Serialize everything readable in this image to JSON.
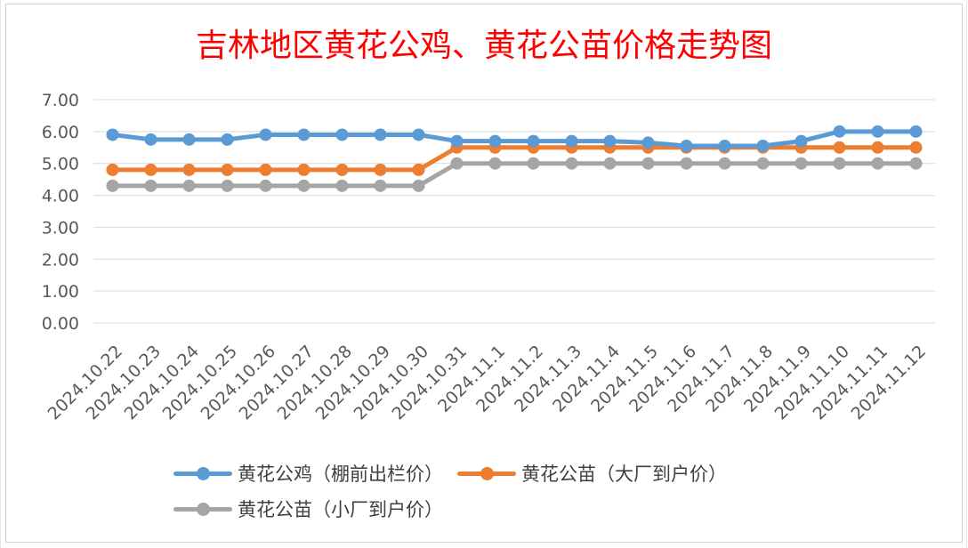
{
  "chart_data": {
    "type": "line",
    "title": "吉林地区黄花公鸡、黄花公苗价格走势图",
    "categories": [
      "2024.10.22",
      "2024.10.23",
      "2024.10.24",
      "2024.10.25",
      "2024.10.26",
      "2024.10.27",
      "2024.10.28",
      "2024.10.29",
      "2024.10.30",
      "2024.10.31",
      "2024.11.1",
      "2024.11.2",
      "2024.11.3",
      "2024.11.4",
      "2024.11.5",
      "2024.11.6",
      "2024.11.7",
      "2024.11.8",
      "2024.11.9",
      "2024.11.10",
      "2024.11.11",
      "2024.11.12"
    ],
    "series": [
      {
        "name": "黄花公鸡（棚前出栏价）",
        "color": "#5b9bd5",
        "values": [
          5.9,
          5.75,
          5.75,
          5.75,
          5.9,
          5.9,
          5.9,
          5.9,
          5.9,
          5.7,
          5.7,
          5.7,
          5.7,
          5.7,
          5.65,
          5.55,
          5.55,
          5.55,
          5.7,
          6.0,
          6.0,
          6.0
        ]
      },
      {
        "name": "黄花公苗（大厂到户价）",
        "color": "#ed7d31",
        "values": [
          4.8,
          4.8,
          4.8,
          4.8,
          4.8,
          4.8,
          4.8,
          4.8,
          4.8,
          5.5,
          5.5,
          5.5,
          5.5,
          5.5,
          5.5,
          5.5,
          5.5,
          5.5,
          5.5,
          5.5,
          5.5,
          5.5
        ]
      },
      {
        "name": "黄花公苗（小厂到户价）",
        "color": "#a5a5a5",
        "values": [
          4.3,
          4.3,
          4.3,
          4.3,
          4.3,
          4.3,
          4.3,
          4.3,
          4.3,
          5.0,
          5.0,
          5.0,
          5.0,
          5.0,
          5.0,
          5.0,
          5.0,
          5.0,
          5.0,
          5.0,
          5.0,
          5.0
        ]
      }
    ],
    "ylim": [
      0,
      7
    ],
    "yticks": [
      "0.00",
      "1.00",
      "2.00",
      "3.00",
      "4.00",
      "5.00",
      "6.00",
      "7.00"
    ],
    "xlabel": "",
    "ylabel": "",
    "grid": true,
    "legend_position": "bottom"
  }
}
